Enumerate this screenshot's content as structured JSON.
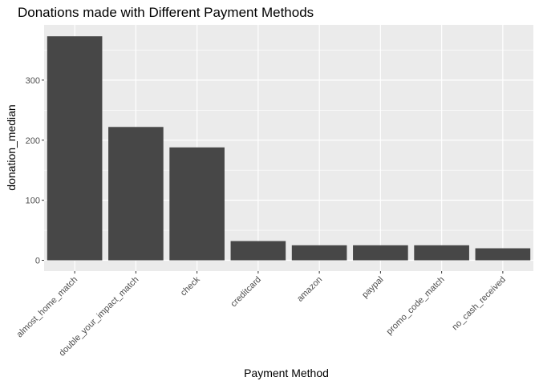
{
  "chart_data": {
    "type": "bar",
    "title": "Donations made with Different Payment Methods",
    "xlabel": "Payment Method",
    "ylabel": "donation_median",
    "categories": [
      "almost_home_match",
      "double_your_impact_match",
      "check",
      "creditcard",
      "amazon",
      "paypal",
      "promo_code_match",
      "no_cash_received"
    ],
    "values": [
      373,
      222,
      188,
      32,
      25,
      25,
      25,
      20
    ],
    "ylim": [
      -18,
      392
    ],
    "yticks": [
      0,
      100,
      200,
      300
    ],
    "grid": true,
    "legend": "none",
    "colors": {
      "bar": "#474747",
      "panel": "#ebebeb",
      "grid_major": "#ffffff",
      "text": "#4d4d4d"
    }
  }
}
